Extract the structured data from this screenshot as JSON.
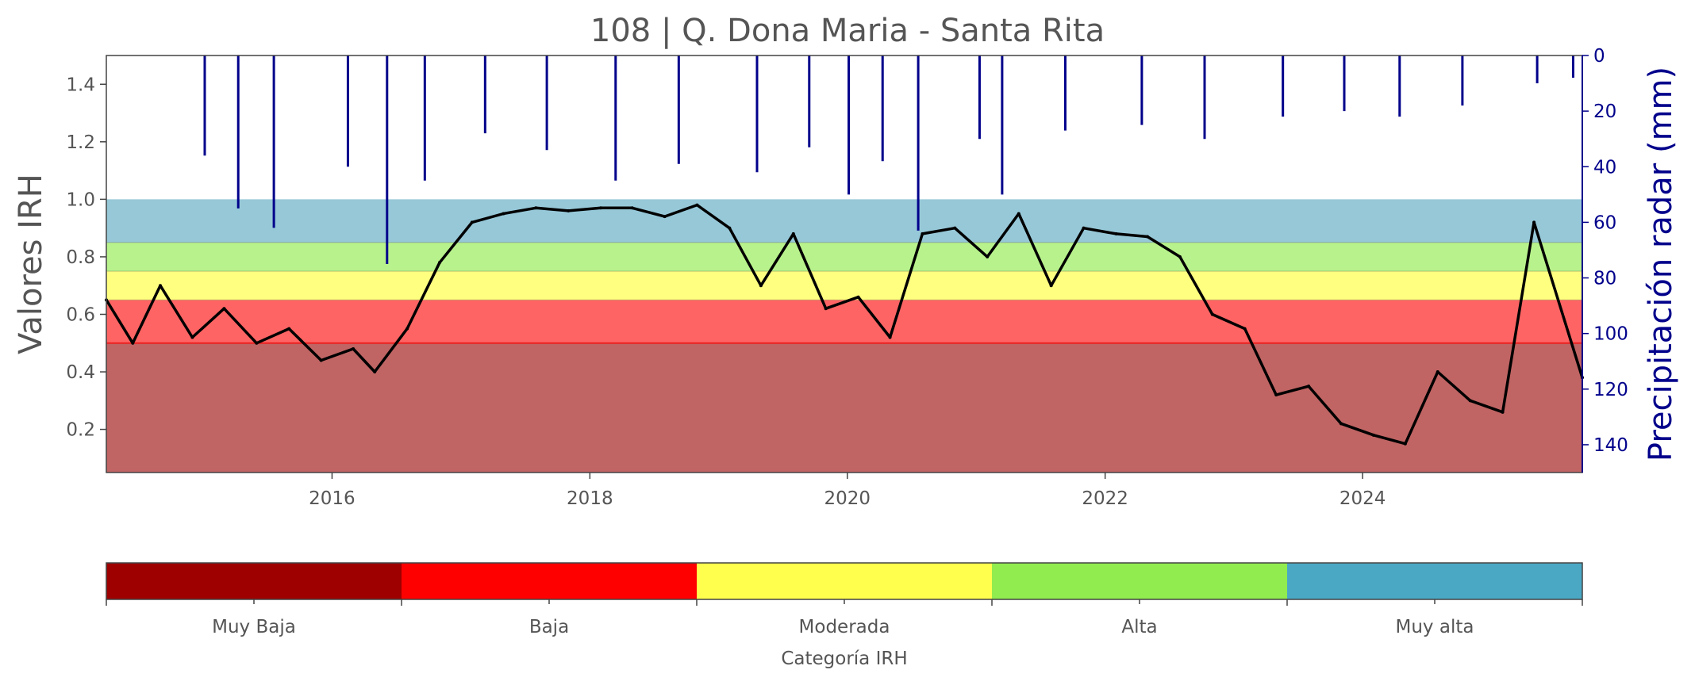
{
  "chart_data": {
    "type": "line",
    "title": "108 | Q. Dona Maria - Santa Rita",
    "ylabel": "Valores IRH",
    "ylabel_right": "Precipitación radar (mm)",
    "xlim": [
      "2014-04-01",
      "2025-09-15"
    ],
    "ylim": [
      0.05,
      1.5
    ],
    "ylim_right_inverted": [
      150,
      0
    ],
    "x_ticks": [
      "2016",
      "2018",
      "2020",
      "2022",
      "2024"
    ],
    "y_ticks": [
      "0.2",
      "0.4",
      "0.6",
      "0.8",
      "1.0",
      "1.2",
      "1.4"
    ],
    "y_ticks_right": [
      "0",
      "20",
      "40",
      "60",
      "80",
      "100",
      "120",
      "140"
    ],
    "category_bands": [
      {
        "name": "Muy Baja",
        "from": 0.0,
        "to": 0.5,
        "color": "#c06464"
      },
      {
        "name": "Baja",
        "from": 0.5,
        "to": 0.65,
        "color": "#ff6464"
      },
      {
        "name": "Moderada",
        "from": 0.65,
        "to": 0.75,
        "color": "#ffff80"
      },
      {
        "name": "Alta",
        "from": 0.75,
        "to": 0.85,
        "color": "#b8f28c"
      },
      {
        "name": "Muy alta",
        "from": 0.85,
        "to": 1.0,
        "color": "#96c8d8"
      }
    ],
    "series": [
      {
        "color": "#000000",
        "axis": "left",
        "x": [
          "2014-04-01",
          "2014-06-15",
          "2014-09-01",
          "2014-12-01",
          "2015-03-01",
          "2015-06-01",
          "2015-09-01",
          "2015-12-01",
          "2016-03-01",
          "2016-05-01",
          "2016-08-01",
          "2016-11-01",
          "2017-02-01",
          "2017-05-01",
          "2017-08-01",
          "2017-11-01",
          "2018-02-01",
          "2018-05-01",
          "2018-08-01",
          "2018-11-01",
          "2019-02-01",
          "2019-05-01",
          "2019-08-01",
          "2019-11-01",
          "2020-02-01",
          "2020-05-01",
          "2020-08-01",
          "2020-11-01",
          "2021-02-01",
          "2021-05-01",
          "2021-08-01",
          "2021-11-01",
          "2022-02-01",
          "2022-05-01",
          "2022-08-01",
          "2022-11-01",
          "2023-02-01",
          "2023-05-01",
          "2023-08-01",
          "2023-11-01",
          "2024-02-01",
          "2024-05-01",
          "2024-08-01",
          "2024-11-01",
          "2025-02-01",
          "2025-05-01",
          "2025-09-15"
        ],
        "y": [
          0.65,
          0.5,
          0.7,
          0.52,
          0.62,
          0.5,
          0.55,
          0.44,
          0.48,
          0.4,
          0.55,
          0.78,
          0.92,
          0.95,
          0.97,
          0.96,
          0.97,
          0.97,
          0.94,
          0.98,
          0.9,
          0.7,
          0.88,
          0.62,
          0.66,
          0.52,
          0.88,
          0.9,
          0.8,
          0.95,
          0.7,
          0.9,
          0.88,
          0.87,
          0.8,
          0.6,
          0.55,
          0.32,
          0.35,
          0.22,
          0.18,
          0.15,
          0.4,
          0.3,
          0.26,
          0.92,
          0.38
        ]
      },
      {
        "color": "#00008b",
        "axis": "right",
        "x": [
          "2015-01-05",
          "2015-04-10",
          "2015-07-20",
          "2016-02-15",
          "2016-06-05",
          "2016-09-20",
          "2017-03-10",
          "2017-09-01",
          "2018-03-15",
          "2018-09-10",
          "2019-04-20",
          "2019-09-15",
          "2020-01-05",
          "2020-04-10",
          "2020-07-20",
          "2021-01-10",
          "2021-03-15",
          "2021-09-10",
          "2022-04-15",
          "2022-10-10",
          "2023-05-20",
          "2023-11-10",
          "2024-04-15",
          "2024-10-10",
          "2025-05-10",
          "2025-08-20"
        ],
        "y": [
          36,
          55,
          62,
          40,
          75,
          45,
          28,
          34,
          45,
          39,
          42,
          33,
          50,
          38,
          63,
          30,
          50,
          27,
          25,
          30,
          22,
          20,
          22,
          18,
          10,
          8
        ]
      }
    ]
  },
  "colorbar": {
    "title": "Categoría IRH",
    "labels": [
      "Muy Baja",
      "Baja",
      "Moderada",
      "Alta",
      "Muy alta"
    ],
    "colors": [
      "#9e0000",
      "#ff0000",
      "#ffff4d",
      "#91ec4f",
      "#4aa8c4"
    ]
  }
}
